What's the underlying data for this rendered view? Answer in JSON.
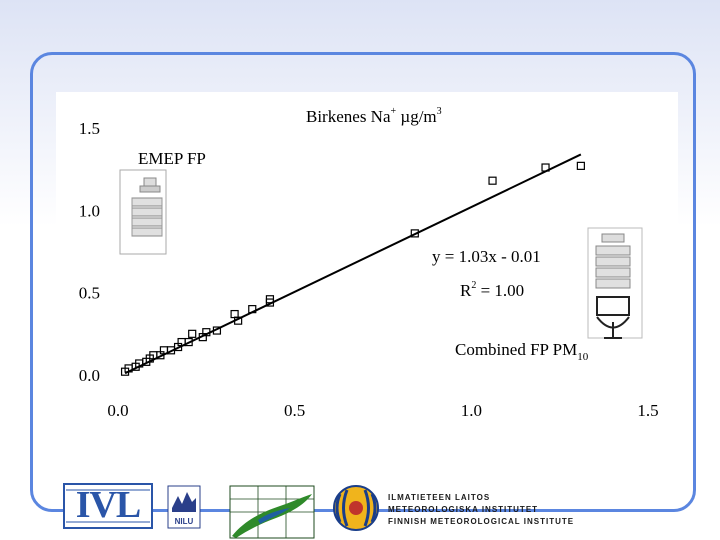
{
  "chart_data": {
    "type": "scatter",
    "title": "Birkenes Na",
    "title_sup": "+",
    "title_units": "µg/m",
    "title_units_sup": "3",
    "xlim": [
      0.0,
      1.5
    ],
    "ylim": [
      0.0,
      1.5
    ],
    "x_ticks": [
      "0.0",
      "0.5",
      "1.0",
      "1.5"
    ],
    "y_ticks": [
      "0.0",
      "0.5",
      "1.0",
      "1.5"
    ],
    "marker": "open-square",
    "points": [
      {
        "x": 0.02,
        "y": 0.02
      },
      {
        "x": 0.03,
        "y": 0.04
      },
      {
        "x": 0.05,
        "y": 0.05
      },
      {
        "x": 0.06,
        "y": 0.07
      },
      {
        "x": 0.08,
        "y": 0.08
      },
      {
        "x": 0.09,
        "y": 0.1
      },
      {
        "x": 0.1,
        "y": 0.12
      },
      {
        "x": 0.12,
        "y": 0.12
      },
      {
        "x": 0.13,
        "y": 0.15
      },
      {
        "x": 0.15,
        "y": 0.15
      },
      {
        "x": 0.17,
        "y": 0.17
      },
      {
        "x": 0.18,
        "y": 0.2
      },
      {
        "x": 0.2,
        "y": 0.2
      },
      {
        "x": 0.21,
        "y": 0.25
      },
      {
        "x": 0.24,
        "y": 0.23
      },
      {
        "x": 0.25,
        "y": 0.26
      },
      {
        "x": 0.28,
        "y": 0.27
      },
      {
        "x": 0.33,
        "y": 0.37
      },
      {
        "x": 0.34,
        "y": 0.33
      },
      {
        "x": 0.38,
        "y": 0.4
      },
      {
        "x": 0.43,
        "y": 0.44
      },
      {
        "x": 0.43,
        "y": 0.46
      },
      {
        "x": 0.84,
        "y": 0.86
      },
      {
        "x": 1.06,
        "y": 1.18
      },
      {
        "x": 1.21,
        "y": 1.26
      },
      {
        "x": 1.31,
        "y": 1.27
      }
    ],
    "fit_line": {
      "x": [
        0.02,
        1.31
      ],
      "y": [
        0.0106,
        1.3393
      ]
    },
    "equation": "y = 1.03x - 0.01",
    "r2_label": "R",
    "r2_sup": "2",
    "r2_value": " = 1.00",
    "annotation_top_left": "EMEP FP",
    "annotation_bottom_right": "Combined FP PM",
    "annotation_bottom_right_sub": "10"
  },
  "logos": {
    "ivl": "IVL",
    "nilu": "NILU",
    "fmi_line1": "ILMATIETEEN LAITOS",
    "fmi_line2": "METEOROLOGISKA INSTITUTET",
    "fmi_line3": "FINNISH METEOROLOGICAL INSTITUTE"
  },
  "colors": {
    "frame": "#5b86e0",
    "ivl_blue": "#2a55a8",
    "fmi_blue": "#1a3e8a",
    "fmi_orange": "#f0b41c",
    "green": "#2f8a2a"
  }
}
